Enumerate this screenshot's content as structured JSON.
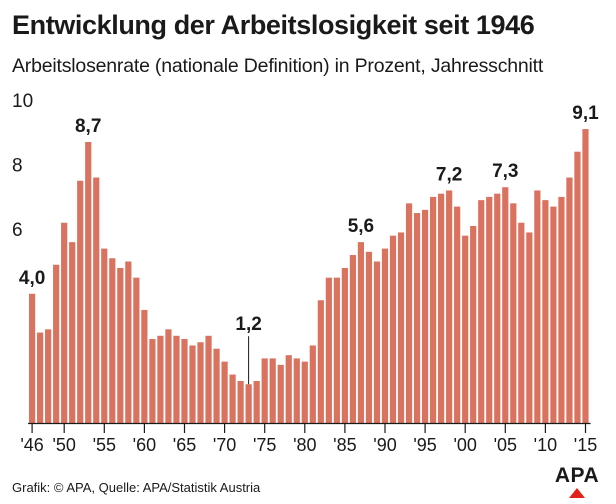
{
  "chart_data": {
    "type": "bar",
    "title": "Entwicklung der Arbeitslosigkeit seit 1946",
    "subtitle": "Arbeitslosenrate (nationale Definition) in Prozent, Jahresschnitt",
    "xlabel": "",
    "ylabel": "",
    "ylim": [
      0,
      10
    ],
    "yticks": [
      "6",
      "8",
      "10"
    ],
    "grid": false,
    "bar_color": "#d9735f",
    "axis_color": "#1a1a1a",
    "years": [
      1946,
      1947,
      1948,
      1949,
      1950,
      1951,
      1952,
      1953,
      1954,
      1955,
      1956,
      1957,
      1958,
      1959,
      1960,
      1961,
      1962,
      1963,
      1964,
      1965,
      1966,
      1967,
      1968,
      1969,
      1970,
      1971,
      1972,
      1973,
      1974,
      1975,
      1976,
      1977,
      1978,
      1979,
      1980,
      1981,
      1982,
      1983,
      1984,
      1985,
      1986,
      1987,
      1988,
      1989,
      1990,
      1991,
      1992,
      1993,
      1994,
      1995,
      1996,
      1997,
      1998,
      1999,
      2000,
      2001,
      2002,
      2003,
      2004,
      2005,
      2006,
      2007,
      2008,
      2009,
      2010,
      2011,
      2012,
      2013,
      2014,
      2015
    ],
    "values": [
      4.0,
      2.8,
      2.9,
      4.9,
      6.2,
      5.6,
      7.5,
      8.7,
      7.6,
      5.4,
      5.1,
      4.8,
      5.0,
      4.5,
      3.5,
      2.6,
      2.7,
      2.9,
      2.7,
      2.6,
      2.4,
      2.5,
      2.7,
      2.3,
      1.9,
      1.5,
      1.3,
      1.2,
      1.3,
      2.0,
      2.0,
      1.8,
      2.1,
      2.0,
      1.9,
      2.4,
      3.8,
      4.5,
      4.5,
      4.8,
      5.2,
      5.6,
      5.3,
      5.0,
      5.4,
      5.8,
      5.9,
      6.8,
      6.5,
      6.6,
      7.0,
      7.1,
      7.2,
      6.7,
      5.8,
      6.1,
      6.9,
      7.0,
      7.1,
      7.3,
      6.8,
      6.2,
      5.9,
      7.2,
      6.9,
      6.7,
      7.0,
      7.6,
      8.4,
      9.1
    ],
    "x_tick_labels": [
      {
        "year": 1946,
        "label": "'46"
      },
      {
        "year": 1950,
        "label": "'50"
      },
      {
        "year": 1955,
        "label": "'55"
      },
      {
        "year": 1960,
        "label": "'60"
      },
      {
        "year": 1965,
        "label": "'65"
      },
      {
        "year": 1970,
        "label": "'70"
      },
      {
        "year": 1975,
        "label": "'75"
      },
      {
        "year": 1980,
        "label": "'80"
      },
      {
        "year": 1985,
        "label": "'85"
      },
      {
        "year": 1990,
        "label": "'90"
      },
      {
        "year": 1995,
        "label": "'95"
      },
      {
        "year": 2000,
        "label": "'00"
      },
      {
        "year": 2005,
        "label": "'05"
      },
      {
        "year": 2010,
        "label": "'10"
      },
      {
        "year": 2015,
        "label": "'15"
      }
    ],
    "annotations": [
      {
        "year": 1946,
        "value": 4.0,
        "label": "4,0"
      },
      {
        "year": 1953,
        "value": 8.7,
        "label": "8,7"
      },
      {
        "year": 1973,
        "value": 1.2,
        "label": "1,2",
        "leader": true
      },
      {
        "year": 1987,
        "value": 5.6,
        "label": "5,6"
      },
      {
        "year": 1998,
        "value": 7.2,
        "label": "7,2"
      },
      {
        "year": 2005,
        "value": 7.3,
        "label": "7,3"
      },
      {
        "year": 2015,
        "value": 9.1,
        "label": "9,1"
      }
    ]
  },
  "footer": {
    "source": "Grafik: © APA, Quelle: APA/Statistik Austria",
    "logo_text": "APA",
    "logo_accent": "#e2231a"
  }
}
